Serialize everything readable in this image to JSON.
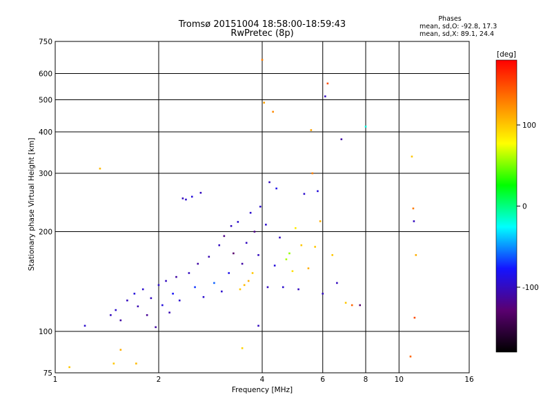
{
  "chart_data": {
    "type": "scatter",
    "title": "Tromsø 20151004 18:58:00-18:59:43",
    "subtitle": "RwPretec (8p)",
    "stats_title": "Phases",
    "stats_line1": "mean, sd,O: -92.8, 17.3",
    "stats_line2": "mean, sd,X:  89.1, 24.4",
    "xlabel": "Frequency [MHz]",
    "ylabel": "Stationary phase Virtual Height [km]",
    "xscale": "log",
    "yscale": "log",
    "xlim": [
      1,
      16
    ],
    "ylim": [
      75,
      750
    ],
    "x_ticks": [
      1,
      2,
      4,
      6,
      8,
      10,
      16
    ],
    "x_tick_labels": [
      "1",
      "2",
      "4",
      "6",
      "8",
      "10",
      "16"
    ],
    "y_ticks": [
      75,
      100,
      200,
      300,
      400,
      500,
      600,
      750
    ],
    "y_tick_labels": [
      "75",
      "100",
      "200",
      "300",
      "400",
      "500",
      "600",
      "750"
    ],
    "grid": true,
    "colorbar": {
      "label": "[deg]",
      "range": [
        -180,
        180
      ],
      "ticks": [
        100,
        0,
        -100
      ],
      "tick_labels": [
        "100",
        "0",
        "-100"
      ],
      "colors": [
        "#000000",
        "#5a0070",
        "#1414ff",
        "#00ffff",
        "#00ff00",
        "#ffff00",
        "#ff8000",
        "#ff0000"
      ]
    },
    "points": [
      {
        "x": 1.22,
        "y": 104,
        "phase": -95
      },
      {
        "x": 1.35,
        "y": 310,
        "phase": 105
      },
      {
        "x": 1.45,
        "y": 112,
        "phase": -100
      },
      {
        "x": 1.5,
        "y": 116,
        "phase": -95
      },
      {
        "x": 1.55,
        "y": 108,
        "phase": -110
      },
      {
        "x": 1.62,
        "y": 124,
        "phase": -100
      },
      {
        "x": 1.7,
        "y": 130,
        "phase": -90
      },
      {
        "x": 1.74,
        "y": 119,
        "phase": -105
      },
      {
        "x": 1.8,
        "y": 134,
        "phase": -95
      },
      {
        "x": 1.85,
        "y": 112,
        "phase": -115
      },
      {
        "x": 1.9,
        "y": 126,
        "phase": -100
      },
      {
        "x": 1.96,
        "y": 103,
        "phase": -110
      },
      {
        "x": 2.0,
        "y": 138,
        "phase": -95
      },
      {
        "x": 2.05,
        "y": 120,
        "phase": -90
      },
      {
        "x": 2.1,
        "y": 142,
        "phase": -100
      },
      {
        "x": 2.15,
        "y": 114,
        "phase": -105
      },
      {
        "x": 2.2,
        "y": 130,
        "phase": -80
      },
      {
        "x": 2.25,
        "y": 146,
        "phase": -110
      },
      {
        "x": 2.3,
        "y": 124,
        "phase": -95
      },
      {
        "x": 2.35,
        "y": 252,
        "phase": -100
      },
      {
        "x": 2.4,
        "y": 250,
        "phase": -95
      },
      {
        "x": 2.45,
        "y": 150,
        "phase": -100
      },
      {
        "x": 2.5,
        "y": 255,
        "phase": -90
      },
      {
        "x": 2.55,
        "y": 136,
        "phase": -70
      },
      {
        "x": 2.6,
        "y": 160,
        "phase": -110
      },
      {
        "x": 2.65,
        "y": 262,
        "phase": -100
      },
      {
        "x": 2.7,
        "y": 127,
        "phase": -95
      },
      {
        "x": 2.8,
        "y": 168,
        "phase": -105
      },
      {
        "x": 2.9,
        "y": 140,
        "phase": -60
      },
      {
        "x": 3.0,
        "y": 182,
        "phase": -100
      },
      {
        "x": 3.05,
        "y": 132,
        "phase": -95
      },
      {
        "x": 3.1,
        "y": 194,
        "phase": -120
      },
      {
        "x": 3.2,
        "y": 150,
        "phase": -85
      },
      {
        "x": 3.25,
        "y": 208,
        "phase": -100
      },
      {
        "x": 3.3,
        "y": 172,
        "phase": -130
      },
      {
        "x": 3.4,
        "y": 214,
        "phase": -95
      },
      {
        "x": 3.45,
        "y": 134,
        "phase": 100
      },
      {
        "x": 3.5,
        "y": 160,
        "phase": -110
      },
      {
        "x": 3.55,
        "y": 138,
        "phase": 105
      },
      {
        "x": 3.6,
        "y": 185,
        "phase": -100
      },
      {
        "x": 3.65,
        "y": 142,
        "phase": 110
      },
      {
        "x": 3.7,
        "y": 228,
        "phase": -95
      },
      {
        "x": 3.75,
        "y": 150,
        "phase": 100
      },
      {
        "x": 3.8,
        "y": 200,
        "phase": -120
      },
      {
        "x": 3.9,
        "y": 170,
        "phase": -100
      },
      {
        "x": 3.95,
        "y": 238,
        "phase": -95
      },
      {
        "x": 4.0,
        "y": 660,
        "phase": 130
      },
      {
        "x": 4.05,
        "y": 490,
        "phase": 115
      },
      {
        "x": 4.1,
        "y": 210,
        "phase": -95
      },
      {
        "x": 4.15,
        "y": 136,
        "phase": -100
      },
      {
        "x": 4.2,
        "y": 282,
        "phase": -100
      },
      {
        "x": 4.3,
        "y": 460,
        "phase": 125
      },
      {
        "x": 4.35,
        "y": 158,
        "phase": -90
      },
      {
        "x": 4.4,
        "y": 270,
        "phase": -85
      },
      {
        "x": 4.5,
        "y": 192,
        "phase": -100
      },
      {
        "x": 4.6,
        "y": 136,
        "phase": -95
      },
      {
        "x": 4.7,
        "y": 165,
        "phase": 60
      },
      {
        "x": 4.8,
        "y": 172,
        "phase": 55
      },
      {
        "x": 4.9,
        "y": 152,
        "phase": 90
      },
      {
        "x": 5.0,
        "y": 205,
        "phase": 85
      },
      {
        "x": 5.1,
        "y": 134,
        "phase": -100
      },
      {
        "x": 5.2,
        "y": 182,
        "phase": 100
      },
      {
        "x": 5.3,
        "y": 260,
        "phase": -95
      },
      {
        "x": 5.45,
        "y": 155,
        "phase": 110
      },
      {
        "x": 5.55,
        "y": 405,
        "phase": 115
      },
      {
        "x": 5.6,
        "y": 300,
        "phase": 130
      },
      {
        "x": 5.7,
        "y": 180,
        "phase": 100
      },
      {
        "x": 5.8,
        "y": 265,
        "phase": -90
      },
      {
        "x": 5.9,
        "y": 215,
        "phase": 110
      },
      {
        "x": 6.0,
        "y": 130,
        "phase": -100
      },
      {
        "x": 6.1,
        "y": 512,
        "phase": -100
      },
      {
        "x": 6.2,
        "y": 560,
        "phase": 150
      },
      {
        "x": 6.4,
        "y": 170,
        "phase": 100
      },
      {
        "x": 6.6,
        "y": 140,
        "phase": -100
      },
      {
        "x": 6.8,
        "y": 380,
        "phase": -110
      },
      {
        "x": 7.0,
        "y": 122,
        "phase": 100
      },
      {
        "x": 7.3,
        "y": 120,
        "phase": 140
      },
      {
        "x": 7.7,
        "y": 120,
        "phase": -130
      },
      {
        "x": 8.0,
        "y": 415,
        "phase": -20
      },
      {
        "x": 10.9,
        "y": 337,
        "phase": 100
      },
      {
        "x": 11.0,
        "y": 235,
        "phase": 130
      },
      {
        "x": 11.05,
        "y": 215,
        "phase": -100
      },
      {
        "x": 11.1,
        "y": 110,
        "phase": 150
      },
      {
        "x": 11.2,
        "y": 170,
        "phase": 110
      },
      {
        "x": 10.8,
        "y": 84,
        "phase": 140
      },
      {
        "x": 1.55,
        "y": 88,
        "phase": 110
      },
      {
        "x": 1.72,
        "y": 80,
        "phase": 105
      },
      {
        "x": 1.48,
        "y": 80,
        "phase": 100
      },
      {
        "x": 3.5,
        "y": 89,
        "phase": 95
      },
      {
        "x": 3.9,
        "y": 104,
        "phase": -100
      },
      {
        "x": 1.1,
        "y": 78,
        "phase": 100
      }
    ]
  }
}
